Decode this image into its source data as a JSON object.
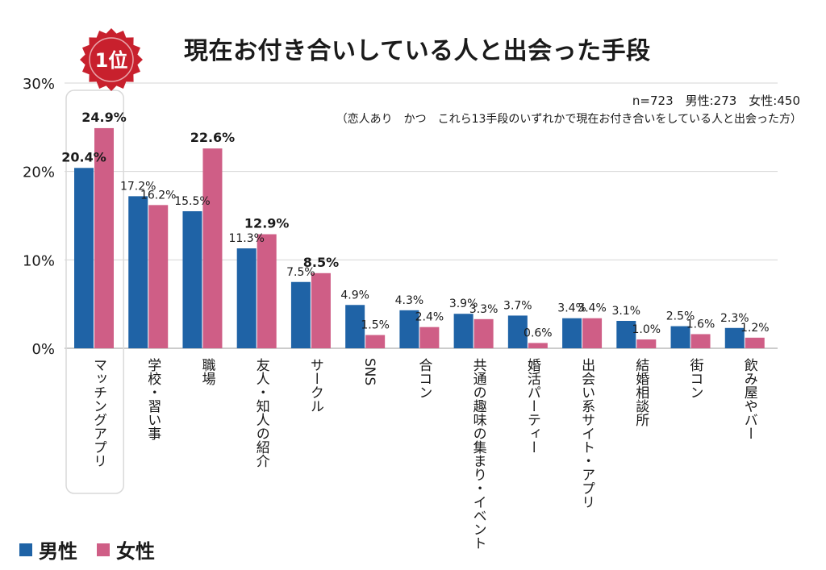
{
  "badge": {
    "text": "1位"
  },
  "title": "現在お付き合いしている人と出会った手段",
  "notes": {
    "sample": "n=723　男性:273　女性:450",
    "condition": "（恋人あり　かつ　これら13手段のいずれかで現在お付き合いをしている人と出会った方）"
  },
  "legend": {
    "male": "男性",
    "female": "女性"
  },
  "colors": {
    "male": "#1f63a6",
    "female": "#cf5e86",
    "highlight_border": "#d9d9d9",
    "badge": "#c8202d"
  },
  "chart_data": {
    "type": "bar",
    "title": "現在お付き合いしている人と出会った手段",
    "ylim": [
      0,
      30
    ],
    "yticks": [
      "0%",
      "10%",
      "20%",
      "30%"
    ],
    "grid": true,
    "legend_position": "bottom-left",
    "highlighted_category": "マッチングアプリ",
    "categories": [
      "マッチングアプリ",
      "学校・習い事",
      "職場",
      "友人・知人の紹介",
      "サークル",
      "SNS",
      "合コン",
      "共通の趣味の集まり・イベント",
      "婚活パーティー",
      "出会い系サイト・アプリ",
      "結婚相談所",
      "街コン",
      "飲み屋やバー"
    ],
    "series": [
      {
        "name": "男性",
        "values": [
          20.4,
          17.2,
          15.5,
          11.3,
          7.5,
          4.9,
          4.3,
          3.9,
          3.7,
          3.4,
          3.1,
          2.5,
          2.3
        ]
      },
      {
        "name": "女性",
        "values": [
          24.9,
          16.2,
          22.6,
          12.9,
          8.5,
          1.5,
          2.4,
          3.3,
          0.6,
          3.4,
          1.0,
          1.6,
          1.2
        ]
      }
    ]
  }
}
